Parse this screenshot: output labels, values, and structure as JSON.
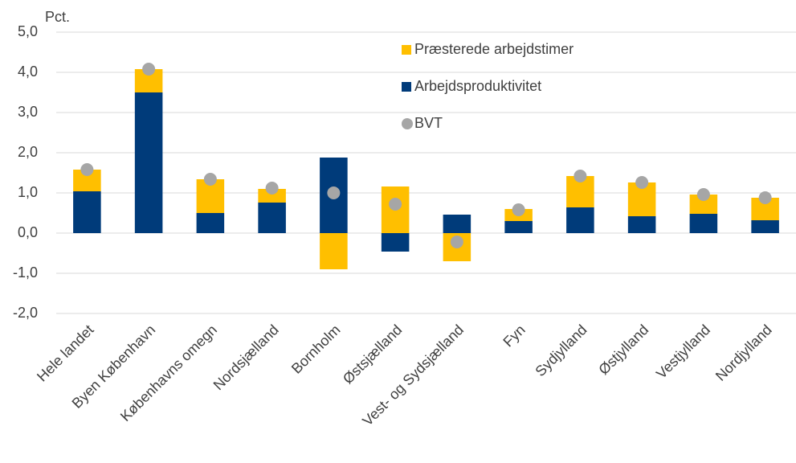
{
  "chart_data": {
    "type": "bar",
    "stacked": true,
    "y_label": "Pct.",
    "categories": [
      "Hele landet",
      "Byen København",
      "Københavns omegn",
      "Nordsjælland",
      "Bornholm",
      "Østsjælland",
      "Vest- og Sydsjælland",
      "Fyn",
      "Sydjylland",
      "Østjylland",
      "Vestjylland",
      "Nordjylland"
    ],
    "series": [
      {
        "name": "Præsterede arbejdstimer",
        "type": "bar",
        "color": "#ffbf00",
        "values": [
          0.54,
          0.58,
          0.84,
          0.34,
          -0.9,
          1.16,
          -0.7,
          0.3,
          0.78,
          0.84,
          0.48,
          0.56
        ]
      },
      {
        "name": "Arbejdsproduktivitet",
        "type": "bar",
        "color": "#003b7a",
        "values": [
          1.04,
          3.5,
          0.5,
          0.76,
          1.88,
          -0.46,
          0.46,
          0.3,
          0.64,
          0.42,
          0.48,
          0.32
        ]
      },
      {
        "name": "BVT",
        "type": "scatter",
        "color": "#a6a6a6",
        "values": [
          1.58,
          4.08,
          1.34,
          1.12,
          1.0,
          0.72,
          -0.22,
          0.58,
          1.42,
          1.26,
          0.96,
          0.88
        ]
      }
    ],
    "stack_order": [
      1,
      0
    ],
    "ylim": [
      -2,
      5
    ],
    "yticks": [
      {
        "value": -2,
        "label": "-2,0"
      },
      {
        "value": -1,
        "label": "-1,0"
      },
      {
        "value": 0,
        "label": "0,0"
      },
      {
        "value": 1,
        "label": "1,0"
      },
      {
        "value": 2,
        "label": "2,0"
      },
      {
        "value": 3,
        "label": "3,0"
      },
      {
        "value": 4,
        "label": "4,0"
      },
      {
        "value": 5,
        "label": "5,0"
      }
    ],
    "grid": true,
    "legend": "upper right"
  }
}
